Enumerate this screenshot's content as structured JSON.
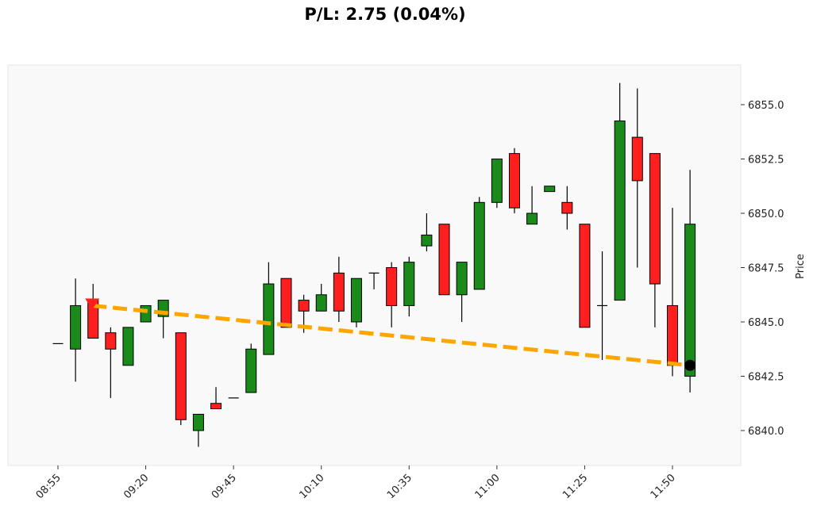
{
  "chart_data": {
    "type": "candlestick",
    "title": "P/L: 2.75 (0.04%)",
    "xlabel": "",
    "ylabel": "Price",
    "y_axis_side": "right",
    "ylim": [
      6838.5,
      6856.5
    ],
    "y_ticks": [
      "6840.0",
      "6842.5",
      "6845.0",
      "6847.5",
      "6850.0",
      "6852.5",
      "6855.0"
    ],
    "x_ticks": [
      "08:55",
      "09:20",
      "09:45",
      "10:10",
      "10:35",
      "11:00",
      "11:25",
      "11:50"
    ],
    "x_tick_rotation": 45,
    "bar_interval_minutes": 5,
    "x_range": [
      "08:50",
      "12:00"
    ],
    "colors": {
      "up": "#1a8a1a",
      "down": "#ff1f1f",
      "trade_line": "#ffa500",
      "entry_marker": "#ff1f1f",
      "exit_marker": "#000000",
      "plot_background": "#f9f9f9"
    },
    "candles": [
      {
        "time": "08:55",
        "open": 6844.0,
        "high": 6844.0,
        "low": 6844.0,
        "close": 6844.0
      },
      {
        "time": "09:00",
        "open": 6843.75,
        "high": 6847.0,
        "low": 6842.25,
        "close": 6845.75
      },
      {
        "time": "09:05",
        "open": 6846.0,
        "high": 6846.75,
        "low": 6844.25,
        "close": 6844.25
      },
      {
        "time": "09:10",
        "open": 6844.5,
        "high": 6844.75,
        "low": 6841.5,
        "close": 6843.75
      },
      {
        "time": "09:15",
        "open": 6843.0,
        "high": 6844.75,
        "low": 6843.0,
        "close": 6844.75
      },
      {
        "time": "09:20",
        "open": 6845.0,
        "high": 6845.75,
        "low": 6845.0,
        "close": 6845.75
      },
      {
        "time": "09:25",
        "open": 6845.25,
        "high": 6846.0,
        "low": 6844.25,
        "close": 6846.0
      },
      {
        "time": "09:30",
        "open": 6844.5,
        "high": 6844.5,
        "low": 6840.25,
        "close": 6840.5
      },
      {
        "time": "09:35",
        "open": 6840.0,
        "high": 6840.75,
        "low": 6839.25,
        "close": 6840.75
      },
      {
        "time": "09:40",
        "open": 6841.25,
        "high": 6842.0,
        "low": 6841.0,
        "close": 6841.0
      },
      {
        "time": "09:45",
        "open": 6841.5,
        "high": 6841.5,
        "low": 6841.5,
        "close": 6841.5
      },
      {
        "time": "09:50",
        "open": 6841.75,
        "high": 6844.0,
        "low": 6841.75,
        "close": 6843.75
      },
      {
        "time": "09:55",
        "open": 6843.5,
        "high": 6847.75,
        "low": 6843.5,
        "close": 6846.75
      },
      {
        "time": "10:00",
        "open": 6847.0,
        "high": 6847.0,
        "low": 6844.75,
        "close": 6844.75
      },
      {
        "time": "10:05",
        "open": 6846.0,
        "high": 6846.25,
        "low": 6844.5,
        "close": 6845.5
      },
      {
        "time": "10:10",
        "open": 6845.5,
        "high": 6846.75,
        "low": 6845.5,
        "close": 6846.25
      },
      {
        "time": "10:15",
        "open": 6847.25,
        "high": 6848.0,
        "low": 6845.0,
        "close": 6845.5
      },
      {
        "time": "10:20",
        "open": 6845.0,
        "high": 6847.0,
        "low": 6844.75,
        "close": 6847.0
      },
      {
        "time": "10:25",
        "open": 6847.25,
        "high": 6847.25,
        "low": 6846.5,
        "close": 6847.25
      },
      {
        "time": "10:30",
        "open": 6847.5,
        "high": 6847.75,
        "low": 6844.75,
        "close": 6845.75
      },
      {
        "time": "10:35",
        "open": 6845.75,
        "high": 6848.0,
        "low": 6845.25,
        "close": 6847.75
      },
      {
        "time": "10:40",
        "open": 6848.5,
        "high": 6850.0,
        "low": 6848.25,
        "close": 6849.0
      },
      {
        "time": "10:45",
        "open": 6849.5,
        "high": 6849.5,
        "low": 6846.25,
        "close": 6846.25
      },
      {
        "time": "10:50",
        "open": 6846.25,
        "high": 6847.75,
        "low": 6845.0,
        "close": 6847.75
      },
      {
        "time": "10:55",
        "open": 6846.5,
        "high": 6850.75,
        "low": 6846.5,
        "close": 6850.5
      },
      {
        "time": "11:00",
        "open": 6850.5,
        "high": 6852.5,
        "low": 6850.25,
        "close": 6852.5
      },
      {
        "time": "11:05",
        "open": 6852.75,
        "high": 6853.0,
        "low": 6850.0,
        "close": 6850.25
      },
      {
        "time": "11:10",
        "open": 6849.5,
        "high": 6851.25,
        "low": 6849.5,
        "close": 6850.0
      },
      {
        "time": "11:15",
        "open": 6851.0,
        "high": 6851.25,
        "low": 6851.0,
        "close": 6851.25
      },
      {
        "time": "11:20",
        "open": 6850.5,
        "high": 6851.25,
        "low": 6849.25,
        "close": 6850.0
      },
      {
        "time": "11:25",
        "open": 6849.5,
        "high": 6849.5,
        "low": 6844.75,
        "close": 6844.75
      },
      {
        "time": "11:30",
        "open": 6845.75,
        "high": 6848.25,
        "low": 6843.25,
        "close": 6845.75
      },
      {
        "time": "11:35",
        "open": 6846.0,
        "high": 6856.0,
        "low": 6846.0,
        "close": 6854.25
      },
      {
        "time": "11:40",
        "open": 6853.5,
        "high": 6855.75,
        "low": 6847.5,
        "close": 6851.5
      },
      {
        "time": "11:45",
        "open": 6852.75,
        "high": 6852.75,
        "low": 6844.75,
        "close": 6846.75
      },
      {
        "time": "11:50",
        "open": 6845.75,
        "high": 6850.25,
        "low": 6842.5,
        "close": 6843.0
      },
      {
        "time": "11:55",
        "open": 6842.5,
        "high": 6852.0,
        "low": 6841.75,
        "close": 6849.5
      }
    ],
    "trade": {
      "entry": {
        "time": "09:05",
        "price": 6845.75,
        "marker": "triangle-down"
      },
      "exit": {
        "time": "11:55",
        "price": 6843.0,
        "marker": "circle"
      },
      "line_style": "dashed"
    }
  }
}
